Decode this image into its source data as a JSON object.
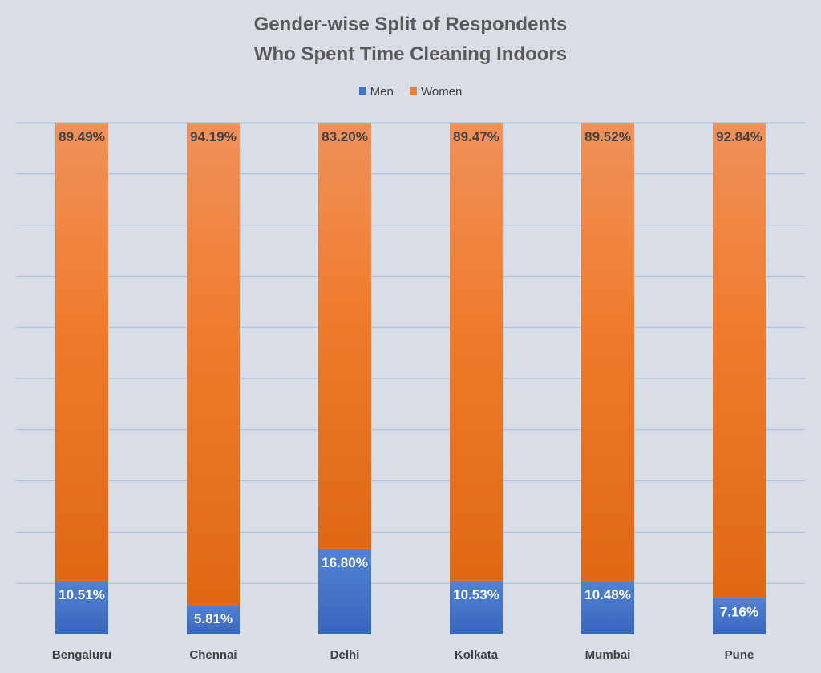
{
  "chart_data": {
    "type": "bar",
    "stacked": true,
    "title_lines": [
      "Gender-wise Split of Respondents",
      "Who Spent Time Cleaning Indoors"
    ],
    "categories": [
      "Bengaluru",
      "Chennai",
      "Delhi",
      "Kolkata",
      "Mumbai",
      "Pune"
    ],
    "series": [
      {
        "name": "Men",
        "color": "#4472c4",
        "values": [
          10.51,
          5.81,
          16.8,
          10.53,
          10.48,
          7.16
        ],
        "labels": [
          "10.51%",
          "5.81%",
          "16.80%",
          "10.53%",
          "10.48%",
          "7.16%"
        ]
      },
      {
        "name": "Women",
        "color": "#ed7d31",
        "values": [
          89.49,
          94.19,
          83.2,
          89.47,
          89.52,
          92.84
        ],
        "labels": [
          "89.49%",
          "94.19%",
          "83.20%",
          "89.47%",
          "89.52%",
          "92.84%"
        ]
      }
    ],
    "ylim": [
      0,
      100
    ],
    "grid": true,
    "legend_position": "top"
  }
}
